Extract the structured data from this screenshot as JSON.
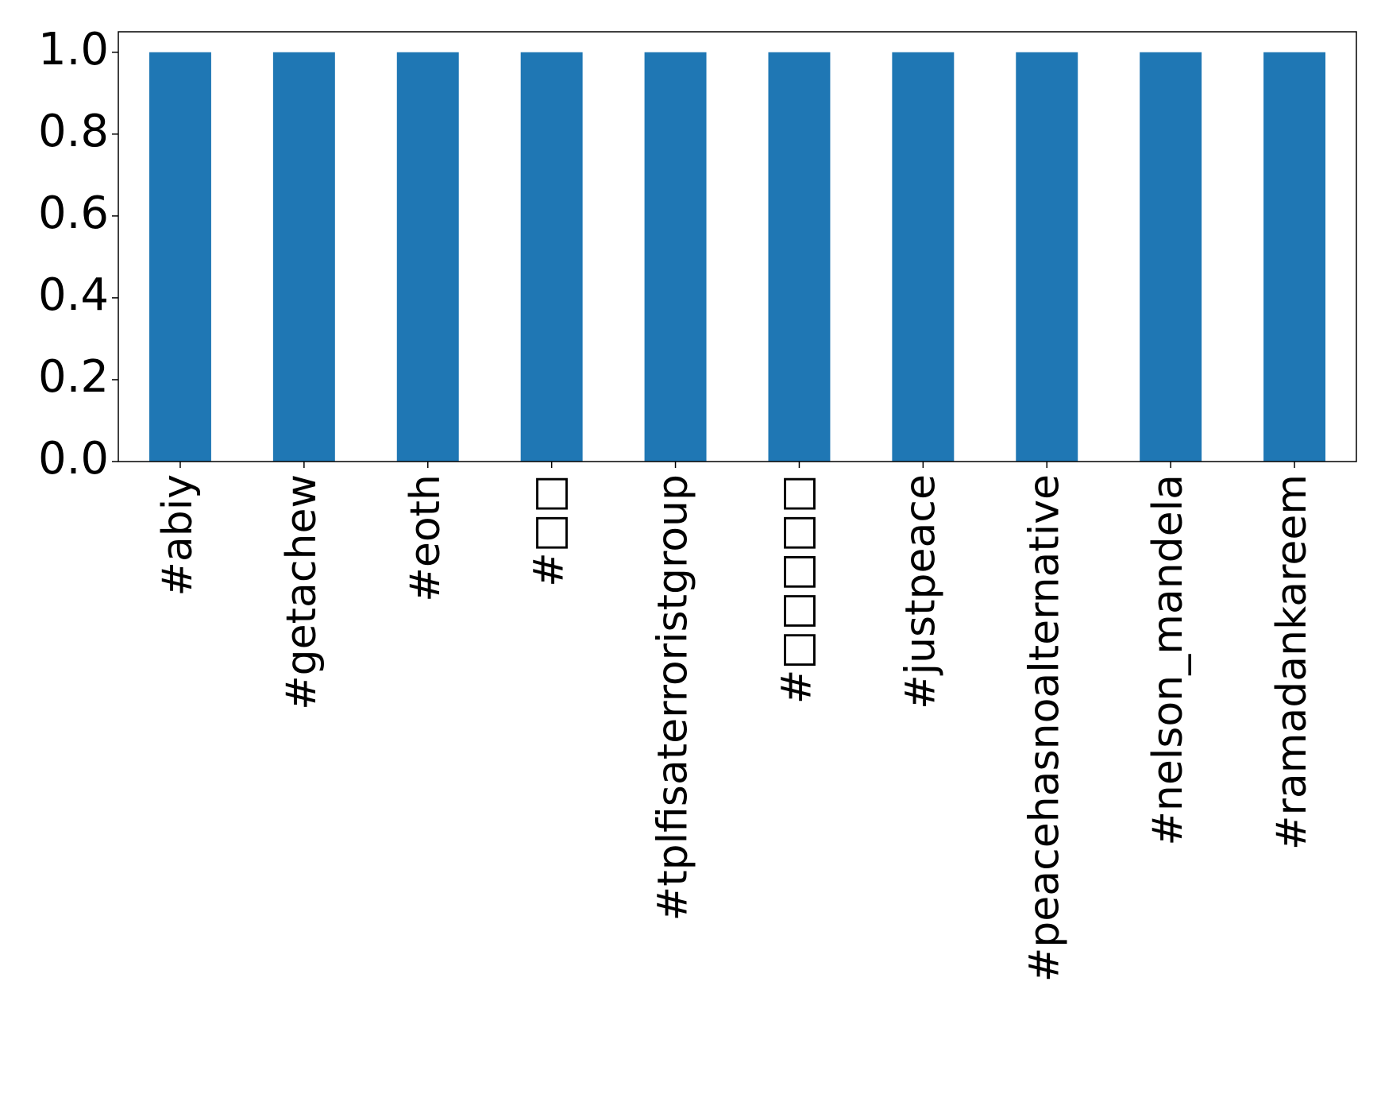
{
  "chart_data": {
    "type": "bar",
    "categories": [
      "#abiy",
      "#getachew",
      "#eoth",
      "#□□",
      "#tplfisaterroristgroup",
      "#□□□□□",
      "#justpeace",
      "#peacehasnoalternative",
      "#nelson_mandela",
      "#ramadankareem"
    ],
    "values": [
      1,
      1,
      1,
      1,
      1,
      1,
      1,
      1,
      1,
      1
    ],
    "color": "#1f77b4",
    "ylim": [
      0,
      1.05
    ],
    "yticks": [
      {
        "value": 0,
        "label": "0.0"
      },
      0.2,
      0.4,
      0.6,
      0.8,
      {
        "value": 1,
        "label": "1.0"
      }
    ],
    "grid": false
  }
}
